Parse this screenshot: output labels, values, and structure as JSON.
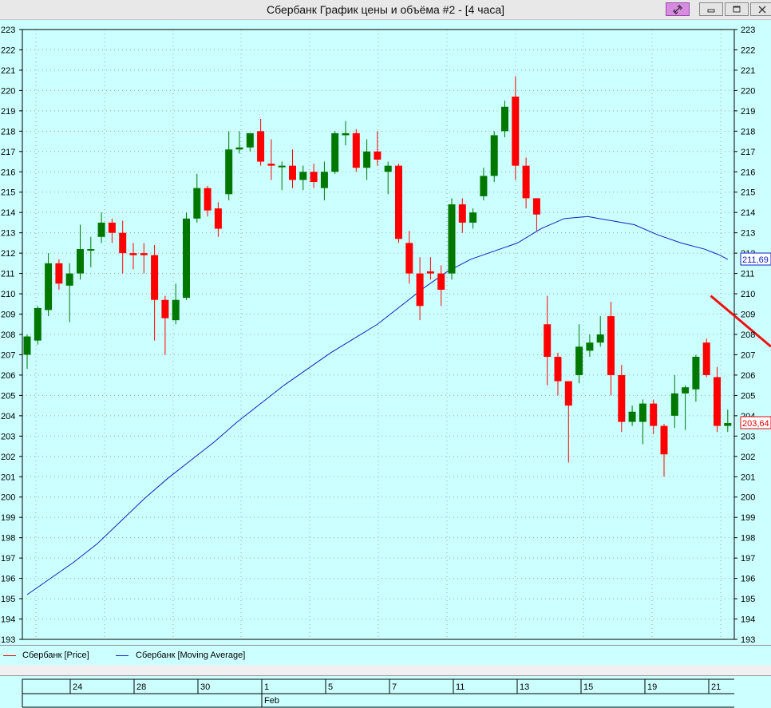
{
  "window": {
    "title": "Сбербанк График цены и объёма #2 - [4 часа]",
    "buttons": {
      "link": "link-icon",
      "minimize": "minimize-icon",
      "maximize": "maximize-icon",
      "close": "close-icon"
    }
  },
  "legend": {
    "price_label": "Сбербанк [Price]",
    "ma_label": "Сбербанк [Moving Average]",
    "price_color": "#e00000",
    "ma_color": "#1020c0"
  },
  "colors": {
    "background": "#ccffff",
    "up": "#007800",
    "down": "#ff0000",
    "trendline": "#ee1010"
  },
  "chart_data": {
    "type": "candlestick",
    "ylim": [
      193,
      223
    ],
    "yticks": [
      193,
      194,
      195,
      196,
      197,
      198,
      199,
      200,
      201,
      202,
      203,
      204,
      205,
      206,
      207,
      208,
      209,
      210,
      211,
      212,
      213,
      214,
      215,
      216,
      217,
      218,
      219,
      220,
      221,
      222,
      223
    ],
    "last_values": {
      "price": "203,64",
      "moving_average": "211,69"
    },
    "candles": [
      {
        "o": 207.0,
        "h": 208.0,
        "l": 206.3,
        "c": 207.9
      },
      {
        "o": 207.7,
        "h": 209.4,
        "l": 207.5,
        "c": 209.3
      },
      {
        "o": 209.2,
        "h": 212.0,
        "l": 208.9,
        "c": 211.5
      },
      {
        "o": 211.5,
        "h": 211.7,
        "l": 210.2,
        "c": 210.5
      },
      {
        "o": 210.4,
        "h": 211.5,
        "l": 208.6,
        "c": 211.0
      },
      {
        "o": 211.0,
        "h": 213.4,
        "l": 210.7,
        "c": 212.2
      },
      {
        "o": 212.2,
        "h": 212.8,
        "l": 211.3,
        "c": 212.2
      },
      {
        "o": 212.8,
        "h": 214.0,
        "l": 212.5,
        "c": 213.5
      },
      {
        "o": 213.5,
        "h": 213.7,
        "l": 212.5,
        "c": 213.0
      },
      {
        "o": 213.0,
        "h": 213.6,
        "l": 211.0,
        "c": 212.0
      },
      {
        "o": 212.0,
        "h": 212.5,
        "l": 211.2,
        "c": 211.9
      },
      {
        "o": 212.0,
        "h": 212.5,
        "l": 211.0,
        "c": 211.9
      },
      {
        "o": 211.9,
        "h": 212.4,
        "l": 207.7,
        "c": 209.7
      },
      {
        "o": 209.7,
        "h": 209.9,
        "l": 207.0,
        "c": 208.8
      },
      {
        "o": 208.7,
        "h": 210.5,
        "l": 208.5,
        "c": 209.7
      },
      {
        "o": 209.8,
        "h": 214.0,
        "l": 209.7,
        "c": 213.7
      },
      {
        "o": 213.7,
        "h": 215.9,
        "l": 213.5,
        "c": 215.2
      },
      {
        "o": 215.2,
        "h": 215.3,
        "l": 213.8,
        "c": 214.1
      },
      {
        "o": 214.2,
        "h": 214.5,
        "l": 212.8,
        "c": 213.2
      },
      {
        "o": 214.9,
        "h": 218.0,
        "l": 214.6,
        "c": 217.1
      },
      {
        "o": 217.1,
        "h": 218.0,
        "l": 216.9,
        "c": 217.2
      },
      {
        "o": 217.2,
        "h": 217.9,
        "l": 217.0,
        "c": 217.9
      },
      {
        "o": 218.0,
        "h": 218.6,
        "l": 216.3,
        "c": 216.5
      },
      {
        "o": 216.4,
        "h": 217.6,
        "l": 215.6,
        "c": 216.3
      },
      {
        "o": 216.3,
        "h": 216.5,
        "l": 215.1,
        "c": 216.3
      },
      {
        "o": 216.3,
        "h": 217.1,
        "l": 215.2,
        "c": 215.6
      },
      {
        "o": 215.6,
        "h": 216.3,
        "l": 215.1,
        "c": 216.0
      },
      {
        "o": 216.0,
        "h": 216.4,
        "l": 215.2,
        "c": 215.5
      },
      {
        "o": 215.2,
        "h": 216.5,
        "l": 214.6,
        "c": 216.0
      },
      {
        "o": 216.0,
        "h": 218.0,
        "l": 215.9,
        "c": 217.9
      },
      {
        "o": 217.8,
        "h": 218.5,
        "l": 217.3,
        "c": 217.9
      },
      {
        "o": 217.9,
        "h": 218.1,
        "l": 216.0,
        "c": 216.2
      },
      {
        "o": 216.2,
        "h": 217.6,
        "l": 215.6,
        "c": 217.0
      },
      {
        "o": 217.0,
        "h": 218.0,
        "l": 216.3,
        "c": 216.6
      },
      {
        "o": 216.0,
        "h": 216.5,
        "l": 214.9,
        "c": 216.3
      },
      {
        "o": 216.3,
        "h": 216.4,
        "l": 212.5,
        "c": 212.7
      },
      {
        "o": 212.5,
        "h": 213.1,
        "l": 210.5,
        "c": 211.0
      },
      {
        "o": 211.0,
        "h": 211.8,
        "l": 208.7,
        "c": 209.4
      },
      {
        "o": 211.1,
        "h": 211.8,
        "l": 210.7,
        "c": 211.0
      },
      {
        "o": 211.0,
        "h": 211.4,
        "l": 209.4,
        "c": 210.2
      },
      {
        "o": 211.0,
        "h": 214.7,
        "l": 210.7,
        "c": 214.4
      },
      {
        "o": 214.4,
        "h": 214.7,
        "l": 213.0,
        "c": 213.5
      },
      {
        "o": 213.5,
        "h": 214.2,
        "l": 213.2,
        "c": 214.0
      },
      {
        "o": 214.8,
        "h": 216.2,
        "l": 214.6,
        "c": 215.8
      },
      {
        "o": 215.8,
        "h": 218.0,
        "l": 215.5,
        "c": 217.8
      },
      {
        "o": 218.0,
        "h": 219.5,
        "l": 217.7,
        "c": 219.2
      },
      {
        "o": 219.7,
        "h": 220.7,
        "l": 215.6,
        "c": 216.3
      },
      {
        "o": 216.3,
        "h": 216.7,
        "l": 214.2,
        "c": 214.7
      },
      {
        "o": 214.7,
        "h": 214.7,
        "l": 213.1,
        "c": 213.9
      },
      {
        "o": 208.5,
        "h": 209.9,
        "l": 205.5,
        "c": 206.9
      },
      {
        "o": 206.9,
        "h": 207.1,
        "l": 205.0,
        "c": 205.7
      },
      {
        "o": 205.7,
        "h": 205.7,
        "l": 201.7,
        "c": 204.5
      },
      {
        "o": 206.0,
        "h": 208.5,
        "l": 205.6,
        "c": 207.4
      },
      {
        "o": 207.2,
        "h": 208.0,
        "l": 206.9,
        "c": 207.6
      },
      {
        "o": 207.6,
        "h": 208.9,
        "l": 207.4,
        "c": 208.0
      },
      {
        "o": 208.9,
        "h": 209.6,
        "l": 205.0,
        "c": 206.0
      },
      {
        "o": 206.0,
        "h": 206.5,
        "l": 203.2,
        "c": 203.7
      },
      {
        "o": 203.7,
        "h": 204.5,
        "l": 203.5,
        "c": 204.2
      },
      {
        "o": 203.7,
        "h": 204.8,
        "l": 202.6,
        "c": 204.6
      },
      {
        "o": 204.6,
        "h": 204.8,
        "l": 203.1,
        "c": 203.5
      },
      {
        "o": 203.5,
        "h": 203.6,
        "l": 201.0,
        "c": 202.1
      },
      {
        "o": 204.0,
        "h": 206.0,
        "l": 203.4,
        "c": 205.1
      },
      {
        "o": 205.1,
        "h": 205.5,
        "l": 203.3,
        "c": 205.4
      },
      {
        "o": 205.3,
        "h": 207.0,
        "l": 204.7,
        "c": 206.9
      },
      {
        "o": 207.6,
        "h": 207.8,
        "l": 205.9,
        "c": 206.0
      },
      {
        "o": 205.9,
        "h": 206.4,
        "l": 203.2,
        "c": 203.5
      },
      {
        "o": 203.5,
        "h": 204.3,
        "l": 203.2,
        "c": 203.64
      }
    ],
    "moving_average": [
      [
        0,
        195.2
      ],
      [
        3,
        196.0
      ],
      [
        6,
        196.8
      ],
      [
        9,
        197.7
      ],
      [
        12,
        198.8
      ],
      [
        15,
        199.9
      ],
      [
        18,
        200.9
      ],
      [
        21,
        201.8
      ],
      [
        24,
        202.7
      ],
      [
        27,
        203.7
      ],
      [
        30,
        204.6
      ],
      [
        33,
        205.5
      ],
      [
        36,
        206.3
      ],
      [
        39,
        207.1
      ],
      [
        42,
        207.8
      ],
      [
        45,
        208.5
      ],
      [
        48,
        209.4
      ],
      [
        51,
        210.3
      ],
      [
        54,
        211.1
      ],
      [
        57,
        211.7
      ],
      [
        60,
        212.1
      ],
      [
        63,
        212.5
      ],
      [
        66,
        213.2
      ],
      [
        69,
        213.7
      ],
      [
        72,
        213.8
      ],
      [
        75,
        213.6
      ],
      [
        78,
        213.4
      ],
      [
        81,
        212.9
      ],
      [
        84,
        212.5
      ],
      [
        87,
        212.2
      ],
      [
        89,
        211.9
      ],
      [
        90,
        211.69
      ]
    ],
    "trendline": {
      "from": [
        64.4,
        209.9
      ],
      "to": [
        90.0,
        207.4
      ]
    },
    "time_axis": {
      "day_labels": [
        {
          "pos": 2,
          "label": "24"
        },
        {
          "pos": 12,
          "label": "28"
        },
        {
          "pos": 22,
          "label": "30"
        },
        {
          "pos": 32,
          "label": "1"
        },
        {
          "pos": 42,
          "label": "5"
        },
        {
          "pos": 52,
          "label": "7"
        },
        {
          "pos": 62,
          "label": "11"
        },
        {
          "pos": 72,
          "label": "13"
        },
        {
          "pos": 82,
          "label": "15"
        },
        {
          "pos": 92,
          "label": "19"
        },
        {
          "pos": 102,
          "label": "21"
        }
      ],
      "month_label": {
        "pos": 32,
        "label": "Feb"
      }
    }
  }
}
